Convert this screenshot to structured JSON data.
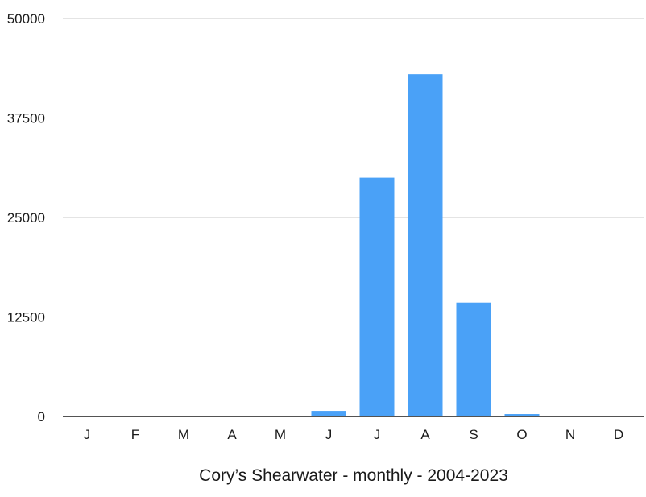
{
  "chart_data": {
    "type": "bar",
    "categories": [
      "J",
      "F",
      "M",
      "A",
      "M",
      "J",
      "J",
      "A",
      "S",
      "O",
      "N",
      "D"
    ],
    "values": [
      0,
      0,
      0,
      0,
      0,
      700,
      30000,
      43000,
      14300,
      300,
      0,
      0
    ],
    "xlabel": "Cory’s Shearwater - monthly - 2004-2023",
    "ylabel": "",
    "ylim": [
      0,
      50000
    ],
    "yticks": [
      0,
      12500,
      25000,
      37500,
      50000
    ],
    "grid": true,
    "bar_color": "#4aa1f7",
    "grid_color": "#c8c8c8",
    "axis_color": "#1a1a1a"
  }
}
